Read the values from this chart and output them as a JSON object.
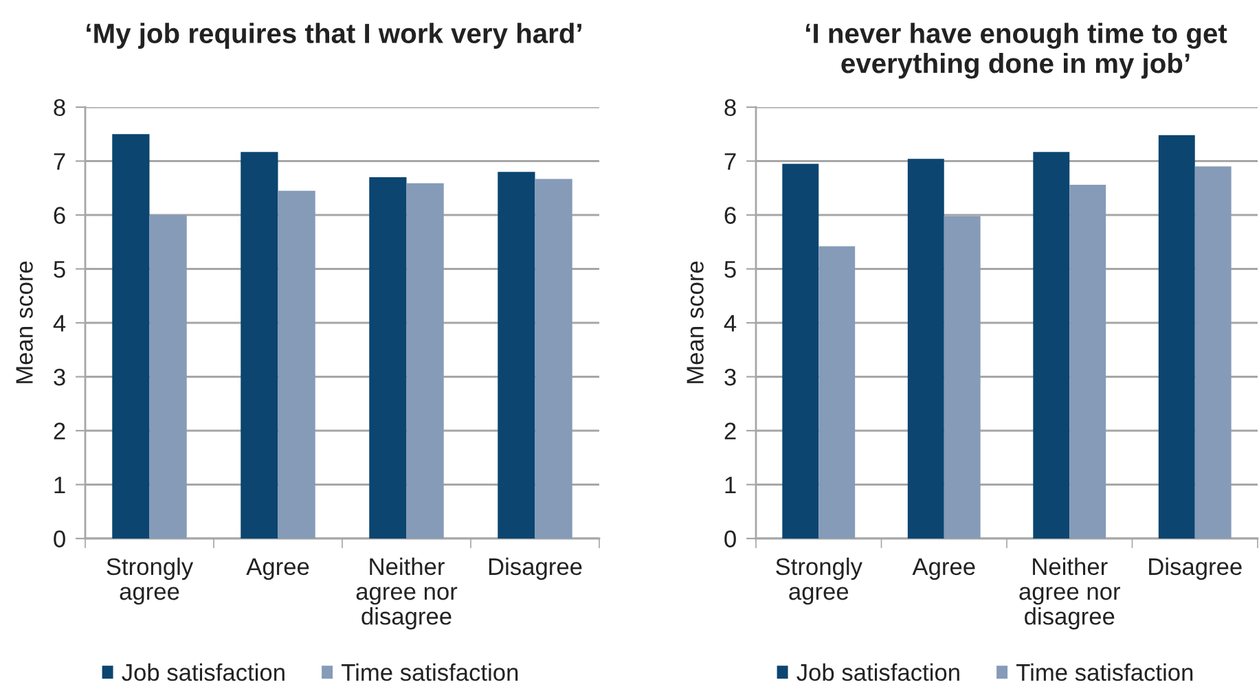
{
  "chart_data": [
    {
      "type": "bar",
      "title": "‘My job requires that I work very hard’",
      "ylabel": "Mean score",
      "categories": [
        "Strongly agree",
        "Agree",
        "Neither agree nor disagree",
        "Disagree"
      ],
      "series": [
        {
          "name": "Job satisfaction",
          "color": "#0b4570",
          "values": [
            7.5,
            7.17,
            6.7,
            6.8
          ]
        },
        {
          "name": "Time satisfaction",
          "color": "#859bb8",
          "values": [
            6.0,
            6.45,
            6.59,
            6.67
          ]
        }
      ],
      "ylim": [
        0,
        8
      ],
      "yticks": [
        0,
        1,
        2,
        3,
        4,
        5,
        6,
        7,
        8
      ],
      "grid": "y",
      "legend": "bottom"
    },
    {
      "type": "bar",
      "title": "‘I never have enough time to get everything done in my job’",
      "ylabel": "Mean score",
      "categories": [
        "Strongly agree",
        "Agree",
        "Neither agree nor disagree",
        "Disagree"
      ],
      "series": [
        {
          "name": "Job satisfaction",
          "color": "#0b4570",
          "values": [
            6.95,
            7.04,
            7.17,
            7.48
          ]
        },
        {
          "name": "Time satisfaction",
          "color": "#859bb8",
          "values": [
            5.42,
            5.98,
            6.56,
            6.9
          ]
        }
      ],
      "ylim": [
        0,
        8
      ],
      "yticks": [
        0,
        1,
        2,
        3,
        4,
        5,
        6,
        7,
        8
      ],
      "grid": "y",
      "legend": "bottom"
    }
  ]
}
